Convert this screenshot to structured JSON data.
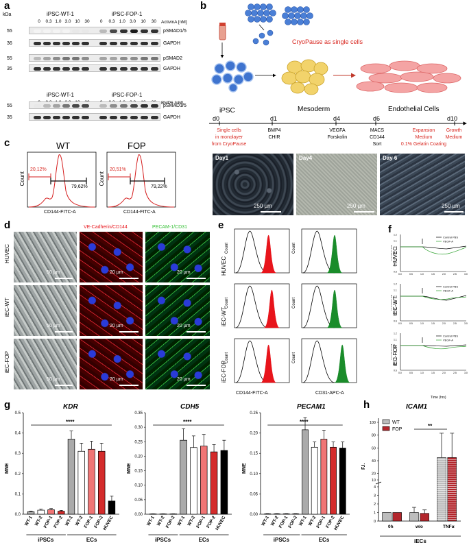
{
  "panel_labels": [
    "a",
    "b",
    "c",
    "d",
    "e",
    "f",
    "g",
    "h"
  ],
  "panel_a": {
    "kda": "kDa",
    "groups_top": [
      "iPSC-WT-1",
      "iPSC-FOP-1"
    ],
    "activin_label": "ActivinA [nM]",
    "conc": [
      "0",
      "0.3",
      "1.0",
      "3.0",
      "10",
      "30"
    ],
    "rows_top": [
      {
        "name": "pSMAD1/5",
        "mw": "55"
      },
      {
        "name": "GAPDH",
        "mw": "36"
      },
      {
        "name": "pSMAD2",
        "mw": "55"
      },
      {
        "name": "GAPDH",
        "mw": "35"
      }
    ],
    "groups_bottom": [
      "iPSC-WT-1",
      "iPSC-FOP-1"
    ],
    "bmp_label": "BMP6 [nM]",
    "rows_bottom": [
      {
        "name": "pSMAD1/5",
        "mw": "55"
      },
      {
        "name": "GAPDH",
        "mw": "35"
      }
    ]
  },
  "panel_b": {
    "cryopause": "CryoPause as single cells",
    "stages": [
      "iPSC",
      "Mesoderm",
      "Endothelial Cells"
    ],
    "days": [
      "d0",
      "d1",
      "d4",
      "d6",
      "d10"
    ],
    "d0_text": [
      "Single cells",
      "in monolayer",
      "from CryoPause"
    ],
    "d1_text": [
      "BMP4",
      "CHIR"
    ],
    "d4_text": [
      "VEGFA",
      "Forskolin"
    ],
    "d6_text": [
      "MACS",
      "CD144",
      "Sort"
    ],
    "d6b_text": [
      "Expansion",
      "Medium",
      "0.1% Gelatin Coating"
    ],
    "d10_text": [
      "Growth",
      "Medium"
    ],
    "images": [
      {
        "label": "Day1",
        "scale": "250 µm"
      },
      {
        "label": "Day4",
        "scale": "250 µm"
      },
      {
        "label": "Day 6",
        "scale": "250 µm"
      }
    ]
  },
  "panel_c": {
    "plots": [
      {
        "title": "WT",
        "left_pct": "20,12%",
        "right_pct": "79,62%"
      },
      {
        "title": "FOP",
        "left_pct": "20,51%",
        "right_pct": "79,22%"
      }
    ],
    "ylabel": "Count",
    "xlabel": "CD144-FITC-A"
  },
  "panel_d": {
    "headers": [
      "VE-Cadherin/CD144",
      "PECAM-1/CD31"
    ],
    "rows": [
      {
        "name": "HUVEC",
        "scale_bf": "50 µm",
        "scale_a": "20 µm",
        "scale_b": "20 µm"
      },
      {
        "name": "iEC-WT",
        "scale_bf": "50 µm",
        "scale_a": "20 µm",
        "scale_b": "20 µm"
      },
      {
        "name": "iEC-FOP",
        "scale_bf": "50 µm",
        "scale_a": "20 µm",
        "scale_b": "20 µm"
      }
    ]
  },
  "panel_e": {
    "rows": [
      "HUVEC",
      "iEC-WT",
      "iEC-FOP"
    ],
    "xlabel_left": "CD144-FITC-A",
    "xlabel_right": "CD31-APC-A",
    "ylabel": "Count",
    "colors": {
      "cd144": "#e8141b",
      "cd31": "#1a8c2a"
    }
  },
  "panel_f": {
    "rows": [
      "HUVEC",
      "iEC-WT",
      "iEC-FOP"
    ],
    "legend": [
      "Control PBS",
      "VEGF-A"
    ],
    "ylabel": "Resistance [Ω]",
    "xlabel": "Time (hrs)",
    "xticks": [
      "0.0",
      "0.5",
      "1.0",
      "1.5",
      "2.0",
      "2.5",
      "3.0"
    ],
    "yticks": [
      "0.6",
      "0.7",
      "0.8",
      "0.9",
      "1.0",
      "1.1",
      "1.2"
    ],
    "colors": {
      "control": "#000000",
      "vegf": "#2ca02c"
    }
  },
  "panel_g": {
    "ylabel": "MNE",
    "group_labels": [
      "iPSCs",
      "ECs"
    ],
    "significance": "****"
  },
  "panel_h": {
    "significance": "**",
    "group_label": "iECs"
  },
  "chart_data": [
    {
      "type": "bar",
      "title": "KDR",
      "ylabel": "MNE",
      "ylim": [
        0,
        0.5
      ],
      "yticks": [
        "0.0",
        "0.1",
        "0.2",
        "0.3",
        "0.4",
        "0.5"
      ],
      "categories": [
        "WT-1",
        "WT-2",
        "FOP-1",
        "FOP-2",
        "WT-1",
        "WT-2",
        "FOP-1",
        "FOP-2",
        "HUVEC"
      ],
      "values": [
        0.012,
        0.02,
        0.022,
        0.015,
        0.37,
        0.31,
        0.32,
        0.31,
        0.065
      ],
      "errors": [
        0.003,
        0.005,
        0.006,
        0.004,
        0.04,
        0.04,
        0.04,
        0.04,
        0.025
      ],
      "colors": [
        "#aaaaaa",
        "#ffffff",
        "#f07575",
        "#d42b2b",
        "#aaaaaa",
        "#ffffff",
        "#f07575",
        "#d42b2b",
        "#000000"
      ]
    },
    {
      "type": "bar",
      "title": "CDH5",
      "ylabel": "MNE",
      "ylim": [
        0,
        0.35
      ],
      "yticks": [
        "0.00",
        "0.05",
        "0.10",
        "0.15",
        "0.20",
        "0.25",
        "0.30",
        "0.35"
      ],
      "categories": [
        "WT-1",
        "WT-2",
        "FOP-2",
        "WT-1",
        "WT-2",
        "FOP-1",
        "FOP-2",
        "HUVEC"
      ],
      "values": [
        0.001,
        0.001,
        0.001,
        0.255,
        0.23,
        0.235,
        0.215,
        0.22
      ],
      "errors": [
        0.0005,
        0.0005,
        0.0005,
        0.04,
        0.04,
        0.04,
        0.025,
        0.035
      ],
      "colors": [
        "#aaaaaa",
        "#ffffff",
        "#d42b2b",
        "#aaaaaa",
        "#ffffff",
        "#f07575",
        "#d42b2b",
        "#000000"
      ]
    },
    {
      "type": "bar",
      "title": "PECAM1",
      "ylabel": "MNE",
      "ylim": [
        0,
        0.25
      ],
      "yticks": [
        "0.00",
        "0.05",
        "0.10",
        "0.15",
        "0.20",
        "0.25"
      ],
      "categories": [
        "WT-1",
        "WT-2",
        "FOP-1",
        "FOP-2",
        "WT-1",
        "WT-2",
        "FOP-1",
        "FOP-2",
        "HUVEC"
      ],
      "values": [
        0.001,
        0.001,
        0.001,
        0.001,
        0.208,
        0.165,
        0.185,
        0.165,
        0.163
      ],
      "errors": [
        0.0005,
        0.0005,
        0.0005,
        0.0005,
        0.03,
        0.013,
        0.022,
        0.013,
        0.015
      ],
      "colors": [
        "#aaaaaa",
        "#ffffff",
        "#f07575",
        "#d42b2b",
        "#aaaaaa",
        "#ffffff",
        "#f07575",
        "#d42b2b",
        "#000000"
      ]
    },
    {
      "type": "bar",
      "title": "ICAM1",
      "ylabel": "F.I.",
      "yticks": [
        "0",
        "1",
        "2",
        "3",
        "4",
        "10",
        "20",
        "40",
        "60",
        "80",
        "100"
      ],
      "categories": [
        "0h",
        "w/o",
        "TNFα"
      ],
      "series": [
        {
          "name": "WT",
          "values": [
            1.0,
            1.0,
            45
          ],
          "errors": [
            0,
            0.6,
            38
          ],
          "color": "#bdbdbd"
        },
        {
          "name": "FOP",
          "values": [
            1.0,
            0.9,
            45
          ],
          "errors": [
            0,
            0.4,
            38
          ],
          "color": "#b3262c"
        }
      ]
    }
  ]
}
